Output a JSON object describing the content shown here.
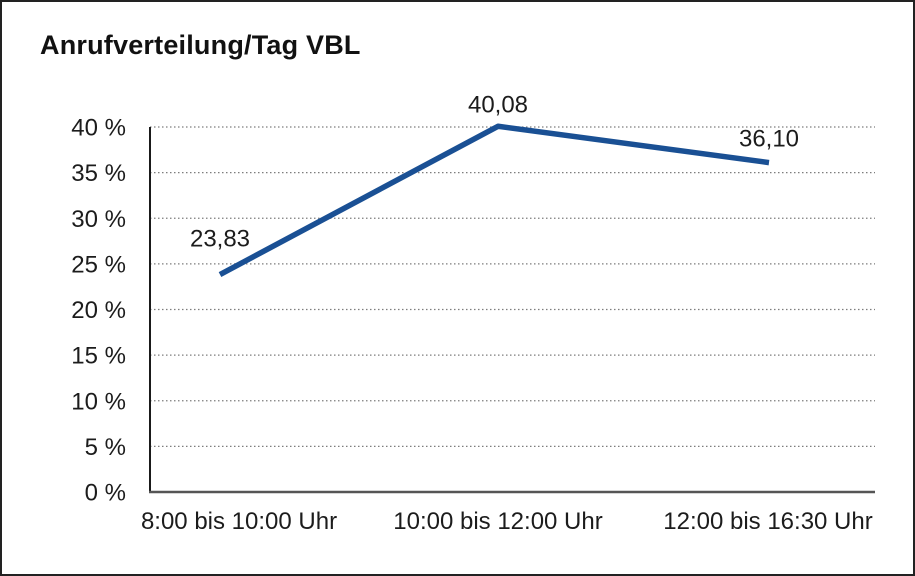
{
  "frame": {
    "background": "#ffffff",
    "border_color": "#222222"
  },
  "chart_title": "Anrufverteilung/Tag VBL",
  "chart_data": {
    "type": "line",
    "title": "Anrufverteilung/Tag VBL",
    "categories": [
      "8:00 bis 10:00 Uhr",
      "10:00 bis 12:00 Uhr",
      "12:00 bis 16:30 Uhr"
    ],
    "values": [
      23.83,
      40.08,
      36.1
    ],
    "point_labels": [
      "23,83",
      "40,08",
      "36,10"
    ],
    "xlabel": "",
    "ylabel": "",
    "ylim": [
      0,
      40
    ],
    "ytick_step": 5,
    "ytick_labels": [
      "0 %",
      "5 %",
      "10 %",
      "15 %",
      "20 %",
      "25 %",
      "30 %",
      "35 %",
      "40 %"
    ],
    "grid": "horizontal-dotted",
    "legend_position": "none",
    "line_color": "#1A5094",
    "grid_color": "#7d7d7d",
    "y_axis_color": "#1a1a1a",
    "x_axis_color": "#555555",
    "text_color": "#1c1c1c"
  }
}
